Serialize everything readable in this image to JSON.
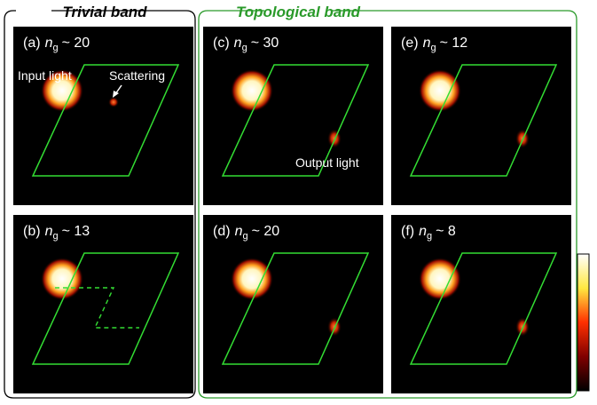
{
  "groups": [
    {
      "title": "Trivial band"
    },
    {
      "title": "Topological band"
    }
  ],
  "panels": [
    {
      "letter": "(a)",
      "symbol": "n",
      "subscript": "g",
      "value": "~ 20"
    },
    {
      "letter": "(b)",
      "symbol": "n",
      "subscript": "g",
      "value": "~ 13"
    },
    {
      "letter": "(c)",
      "symbol": "n",
      "subscript": "g",
      "value": "~ 30"
    },
    {
      "letter": "(d)",
      "symbol": "n",
      "subscript": "g",
      "value": "~ 20"
    },
    {
      "letter": "(e)",
      "symbol": "n",
      "subscript": "g",
      "value": "~ 12"
    },
    {
      "letter": "(f)",
      "symbol": "n",
      "subscript": "g",
      "value": "~ 8"
    }
  ],
  "annotations": {
    "input": "Input light",
    "scattering": "Scattering",
    "output": "Output light"
  }
}
